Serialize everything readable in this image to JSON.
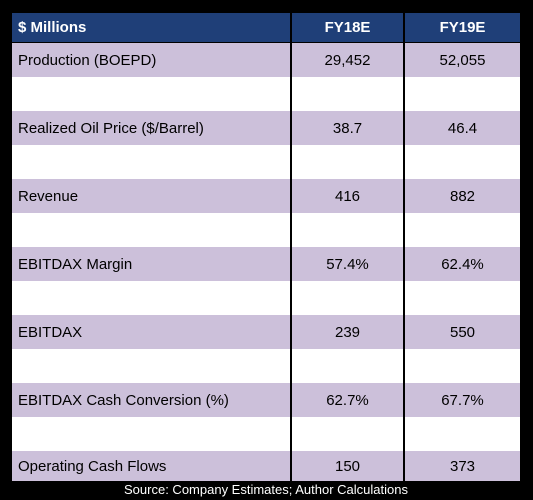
{
  "header": {
    "label": "$ Millions",
    "col1": "FY18E",
    "col2": "FY19E"
  },
  "rows": [
    {
      "label": "Production (BOEPD)",
      "fy18": "29,452",
      "fy19": "52,055"
    },
    {
      "label": "Realized Oil Price ($/Barrel)",
      "fy18": "38.7",
      "fy19": "46.4"
    },
    {
      "label": "Revenue",
      "fy18": "416",
      "fy19": "882"
    },
    {
      "label": "EBITDAX Margin",
      "fy18": "57.4%",
      "fy19": "62.4%"
    },
    {
      "label": "EBITDAX",
      "fy18": "239",
      "fy19": "550"
    },
    {
      "label": "EBITDAX Cash Conversion (%)",
      "fy18": "62.7%",
      "fy19": "67.7%"
    },
    {
      "label": "Operating Cash Flows",
      "fy18": "150",
      "fy19": "373"
    }
  ],
  "footer": {
    "source": "Source: Company Estimates; Author Calculations"
  },
  "colors": {
    "header_bg": "#1f3f78",
    "row_shade": "#ccc0da",
    "row_blank": "#ffffff",
    "background": "#000000"
  }
}
